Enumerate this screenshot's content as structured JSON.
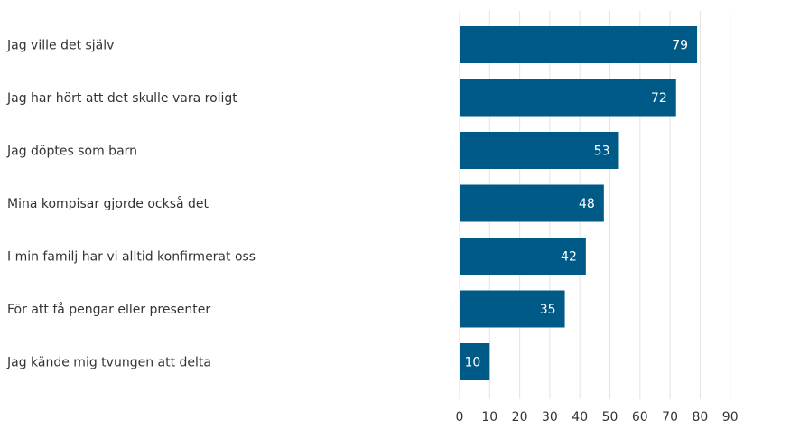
{
  "chart_data": {
    "type": "bar",
    "orientation": "horizontal",
    "title": "",
    "xlabel": "",
    "ylabel": "",
    "categories": [
      "Jag ville det själv",
      "Jag har hört att det skulle vara roligt",
      "Jag döptes som barn",
      "Mina kompisar gjorde också det",
      "I min familj har vi alltid konfirmerat oss",
      "För att få pengar eller presenter",
      "Jag kände mig tvungen att delta"
    ],
    "values": [
      79,
      72,
      53,
      48,
      42,
      35,
      10
    ],
    "xlim": [
      0,
      90
    ],
    "ticks": [
      "0",
      "10",
      "20",
      "30",
      "40",
      "50",
      "60",
      "70",
      "80",
      "90"
    ],
    "grid": true,
    "legend": "none",
    "data_labels": true,
    "bar_color": "#005a87",
    "label_color": "#ffffff",
    "grid_color": "#e3e3e3"
  }
}
